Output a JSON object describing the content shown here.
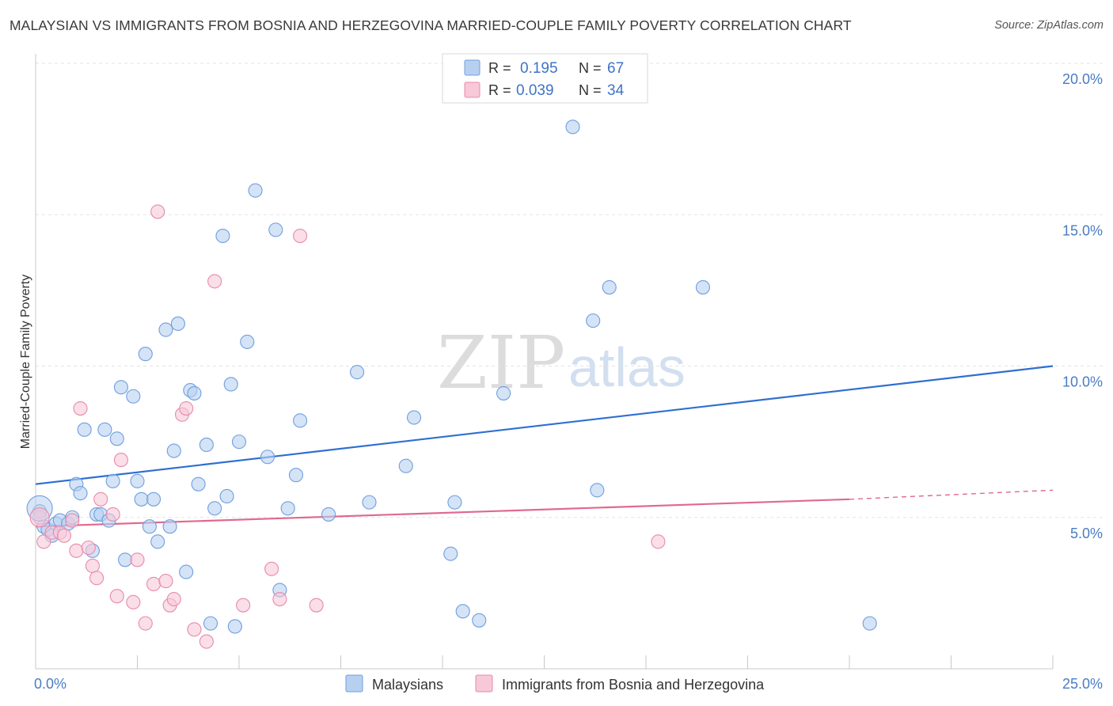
{
  "title": "MALAYSIAN VS IMMIGRANTS FROM BOSNIA AND HERZEGOVINA MARRIED-COUPLE FAMILY POVERTY CORRELATION CHART",
  "source": "Source: ZipAtlas.com",
  "watermark": {
    "zip": "ZIP",
    "atlas": "atlas"
  },
  "legend": {
    "rows": [
      {
        "r_label": "R = ",
        "r_value": "0.195",
        "n_label": "N = ",
        "n_value": "67"
      },
      {
        "r_label": "R = ",
        "r_value": "0.039",
        "n_label": "N = ",
        "n_value": "34"
      }
    ]
  },
  "chart_data": {
    "type": "scatter",
    "xlabel": "",
    "ylabel": "Married-Couple Family Poverty",
    "xlim": [
      0,
      25
    ],
    "ylim": [
      0,
      20
    ],
    "x_tick_labels": [
      "0.0%",
      "25.0%"
    ],
    "y_tick_labels": [
      "5.0%",
      "10.0%",
      "15.0%",
      "20.0%"
    ],
    "y_ticks": [
      5,
      10,
      15,
      20
    ],
    "grid": true,
    "legend_position": "bottom",
    "series": [
      {
        "name": "Malaysians",
        "color": "#6e9fe0",
        "fill": "#b8d0f0",
        "trend_color": "#2f6fd1",
        "trend": {
          "x": [
            0,
            25
          ],
          "y": [
            6.1,
            10.0
          ]
        },
        "points": [
          [
            0.1,
            5.2
          ],
          [
            0.2,
            4.7
          ],
          [
            0.3,
            4.6
          ],
          [
            0.4,
            4.4
          ],
          [
            0.5,
            4.8
          ],
          [
            0.6,
            4.9
          ],
          [
            0.8,
            4.8
          ],
          [
            0.9,
            5.0
          ],
          [
            1.0,
            6.1
          ],
          [
            1.1,
            5.8
          ],
          [
            1.2,
            7.9
          ],
          [
            1.4,
            3.9
          ],
          [
            1.5,
            5.1
          ],
          [
            1.6,
            5.1
          ],
          [
            1.7,
            7.9
          ],
          [
            1.8,
            4.9
          ],
          [
            1.9,
            6.2
          ],
          [
            2.0,
            7.6
          ],
          [
            2.1,
            9.3
          ],
          [
            2.2,
            3.6
          ],
          [
            2.4,
            9.0
          ],
          [
            2.5,
            6.2
          ],
          [
            2.6,
            5.6
          ],
          [
            2.7,
            10.4
          ],
          [
            2.8,
            4.7
          ],
          [
            2.9,
            5.6
          ],
          [
            3.0,
            4.2
          ],
          [
            3.2,
            11.2
          ],
          [
            3.3,
            4.7
          ],
          [
            3.4,
            7.2
          ],
          [
            3.5,
            11.4
          ],
          [
            3.7,
            3.2
          ],
          [
            3.8,
            9.2
          ],
          [
            3.9,
            9.1
          ],
          [
            4.0,
            6.1
          ],
          [
            4.2,
            7.4
          ],
          [
            4.3,
            1.5
          ],
          [
            4.4,
            5.3
          ],
          [
            4.6,
            14.3
          ],
          [
            4.7,
            5.7
          ],
          [
            4.8,
            9.4
          ],
          [
            4.9,
            1.4
          ],
          [
            5.0,
            7.5
          ],
          [
            5.2,
            10.8
          ],
          [
            5.4,
            15.8
          ],
          [
            5.7,
            7.0
          ],
          [
            5.9,
            14.5
          ],
          [
            6.0,
            2.6
          ],
          [
            6.2,
            5.3
          ],
          [
            6.4,
            6.4
          ],
          [
            6.5,
            8.2
          ],
          [
            7.2,
            5.1
          ],
          [
            7.9,
            9.8
          ],
          [
            8.2,
            5.5
          ],
          [
            9.1,
            6.7
          ],
          [
            9.3,
            8.3
          ],
          [
            10.2,
            3.8
          ],
          [
            10.3,
            5.5
          ],
          [
            10.5,
            1.9
          ],
          [
            10.9,
            1.6
          ],
          [
            11.5,
            9.1
          ],
          [
            13.2,
            17.9
          ],
          [
            13.7,
            11.5
          ],
          [
            13.8,
            5.9
          ],
          [
            14.1,
            12.6
          ],
          [
            16.4,
            12.6
          ],
          [
            20.5,
            1.5
          ]
        ]
      },
      {
        "name": "Immigrants from Bosnia and Herzegovina",
        "color": "#e88aaa",
        "fill": "#f6c8d8",
        "trend_color": "#e0698f",
        "trend": {
          "x": [
            0,
            20
          ],
          "y": [
            4.7,
            5.6
          ],
          "dashed_to": [
            25,
            5.9
          ]
        },
        "points": [
          [
            0.1,
            5.0
          ],
          [
            0.2,
            4.2
          ],
          [
            0.4,
            4.5
          ],
          [
            0.6,
            4.5
          ],
          [
            0.7,
            4.4
          ],
          [
            0.9,
            4.9
          ],
          [
            1.0,
            3.9
          ],
          [
            1.1,
            8.6
          ],
          [
            1.3,
            4.0
          ],
          [
            1.4,
            3.4
          ],
          [
            1.5,
            3.0
          ],
          [
            1.6,
            5.6
          ],
          [
            1.9,
            5.1
          ],
          [
            2.0,
            2.4
          ],
          [
            2.1,
            6.9
          ],
          [
            2.4,
            2.2
          ],
          [
            2.5,
            3.6
          ],
          [
            2.7,
            1.5
          ],
          [
            2.9,
            2.8
          ],
          [
            3.0,
            15.1
          ],
          [
            3.2,
            2.9
          ],
          [
            3.3,
            2.1
          ],
          [
            3.4,
            2.3
          ],
          [
            3.6,
            8.4
          ],
          [
            3.7,
            8.6
          ],
          [
            3.9,
            1.3
          ],
          [
            4.2,
            0.9
          ],
          [
            4.4,
            12.8
          ],
          [
            5.1,
            2.1
          ],
          [
            5.8,
            3.3
          ],
          [
            6.0,
            2.3
          ],
          [
            6.5,
            14.3
          ],
          [
            6.9,
            2.1
          ],
          [
            15.3,
            4.2
          ]
        ]
      }
    ]
  }
}
